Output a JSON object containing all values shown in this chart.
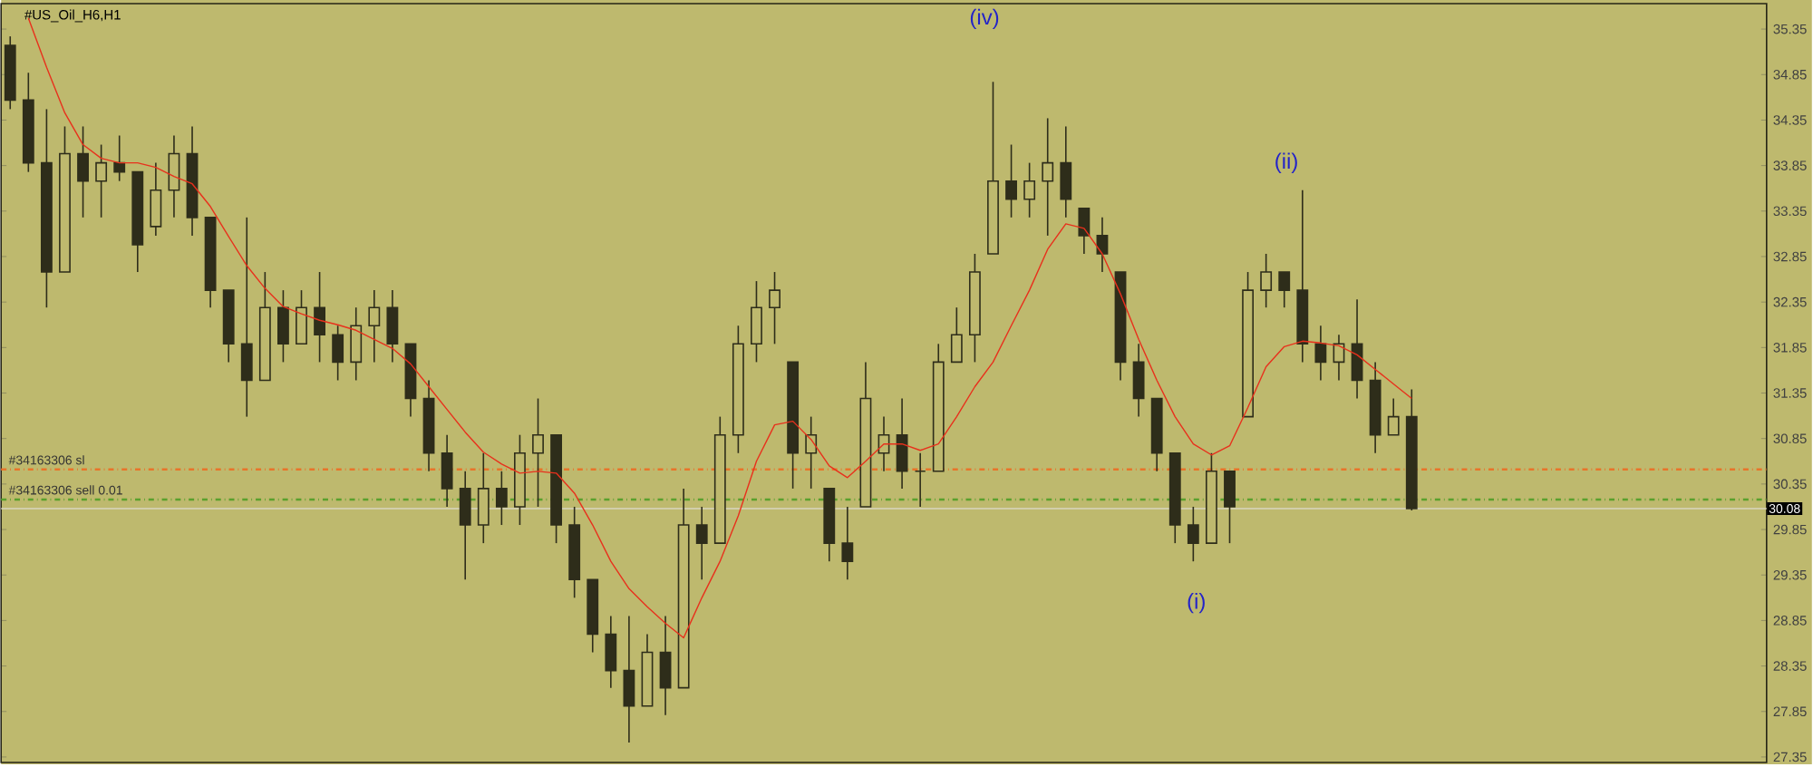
{
  "chart_data": {
    "type": "candlestick",
    "title": "#US_Oil_H6,H1",
    "categories": [
      null,
      null,
      null,
      null,
      null,
      null,
      null,
      null,
      null,
      null,
      null,
      null,
      null,
      null,
      null,
      null,
      null,
      null,
      null,
      null,
      null,
      null,
      null,
      null,
      null,
      null,
      null,
      null,
      null,
      null,
      null,
      null,
      null,
      null,
      null,
      null,
      null,
      null,
      null,
      null,
      null,
      null,
      null,
      null,
      null,
      null,
      null,
      null,
      null,
      null,
      null,
      null,
      null,
      null,
      null,
      null,
      null,
      null,
      null,
      null,
      null,
      null,
      null,
      null,
      null,
      null,
      null,
      null,
      null,
      null,
      null,
      null,
      null,
      null,
      null,
      null,
      null,
      null,
      null,
      null,
      null,
      null,
      null,
      null,
      null,
      null,
      null,
      null,
      null,
      null,
      null,
      null,
      null,
      null,
      null,
      null,
      null
    ],
    "ylim": [
      27.29,
      35.63
    ],
    "yticks": [
      27.35,
      27.85,
      28.35,
      28.85,
      29.35,
      29.85,
      30.35,
      30.85,
      31.35,
      31.85,
      32.35,
      32.85,
      33.35,
      33.85,
      34.35,
      34.85,
      35.35
    ],
    "tick_labels": "y",
    "series": [
      {
        "type": "candlestick",
        "color": "#2e2d1a",
        "ohlc": [
          [
            35.17,
            35.27,
            34.47,
            34.57
          ],
          [
            34.57,
            34.87,
            33.78,
            33.88
          ],
          [
            33.88,
            34.47,
            32.29,
            32.68
          ],
          [
            32.68,
            34.28,
            32.68,
            33.98
          ],
          [
            33.98,
            34.28,
            33.28,
            33.68
          ],
          [
            33.68,
            34.08,
            33.28,
            33.88
          ],
          [
            33.88,
            34.18,
            33.68,
            33.78
          ],
          [
            33.78,
            33.78,
            32.68,
            32.98
          ],
          [
            33.18,
            33.88,
            33.08,
            33.58
          ],
          [
            33.58,
            34.18,
            33.28,
            33.98
          ],
          [
            33.98,
            34.28,
            33.08,
            33.28
          ],
          [
            33.28,
            33.28,
            32.29,
            32.48
          ],
          [
            32.48,
            32.48,
            31.69,
            31.89
          ],
          [
            31.89,
            33.28,
            31.09,
            31.49
          ],
          [
            31.49,
            32.68,
            31.49,
            32.29
          ],
          [
            32.29,
            32.48,
            31.69,
            31.89
          ],
          [
            31.89,
            32.48,
            31.89,
            32.29
          ],
          [
            32.29,
            32.68,
            31.69,
            31.99
          ],
          [
            31.99,
            32.09,
            31.49,
            31.69
          ],
          [
            31.69,
            32.29,
            31.49,
            32.09
          ],
          [
            32.09,
            32.48,
            31.69,
            32.29
          ],
          [
            32.29,
            32.48,
            31.69,
            31.89
          ],
          [
            31.89,
            31.89,
            31.09,
            31.29
          ],
          [
            31.29,
            31.49,
            30.49,
            30.69
          ],
          [
            30.69,
            30.89,
            30.1,
            30.3
          ],
          [
            30.3,
            30.49,
            29.3,
            29.9
          ],
          [
            29.9,
            30.69,
            29.7,
            30.3
          ],
          [
            30.3,
            30.49,
            29.9,
            30.1
          ],
          [
            30.1,
            30.89,
            29.9,
            30.69
          ],
          [
            30.69,
            31.29,
            30.1,
            30.89
          ],
          [
            30.89,
            30.89,
            29.7,
            29.9
          ],
          [
            29.9,
            30.1,
            29.1,
            29.3
          ],
          [
            29.3,
            29.3,
            28.5,
            28.7
          ],
          [
            28.7,
            28.9,
            28.11,
            28.3
          ],
          [
            28.3,
            28.9,
            27.51,
            27.91
          ],
          [
            27.91,
            28.7,
            27.91,
            28.5
          ],
          [
            28.5,
            28.9,
            27.81,
            28.11
          ],
          [
            28.11,
            30.3,
            28.11,
            29.9
          ],
          [
            29.9,
            30.1,
            29.3,
            29.7
          ],
          [
            29.7,
            31.09,
            29.7,
            30.89
          ],
          [
            30.89,
            32.09,
            30.69,
            31.89
          ],
          [
            31.89,
            32.58,
            31.69,
            32.29
          ],
          [
            32.29,
            32.68,
            31.89,
            32.48
          ],
          [
            31.69,
            31.69,
            30.3,
            30.69
          ],
          [
            30.69,
            31.09,
            30.3,
            30.89
          ],
          [
            30.3,
            30.3,
            29.5,
            29.7
          ],
          [
            29.7,
            30.1,
            29.3,
            29.5
          ],
          [
            30.1,
            31.69,
            30.1,
            31.29
          ],
          [
            30.69,
            31.09,
            30.49,
            30.89
          ],
          [
            30.89,
            31.29,
            30.3,
            30.49
          ],
          [
            30.49,
            30.69,
            30.1,
            30.49
          ],
          [
            30.49,
            31.89,
            30.49,
            31.69
          ],
          [
            31.69,
            32.29,
            31.69,
            31.99
          ],
          [
            31.99,
            32.88,
            31.69,
            32.68
          ],
          [
            32.88,
            34.77,
            32.88,
            33.68
          ],
          [
            33.68,
            34.08,
            33.28,
            33.48
          ],
          [
            33.48,
            33.88,
            33.28,
            33.68
          ],
          [
            33.68,
            34.37,
            33.08,
            33.88
          ],
          [
            33.88,
            34.28,
            33.28,
            33.48
          ],
          [
            33.38,
            33.38,
            32.88,
            33.08
          ],
          [
            33.08,
            33.28,
            32.68,
            32.88
          ],
          [
            32.68,
            32.68,
            31.49,
            31.69
          ],
          [
            31.69,
            31.89,
            31.09,
            31.29
          ],
          [
            31.29,
            31.29,
            30.49,
            30.69
          ],
          [
            30.69,
            30.69,
            29.7,
            29.9
          ],
          [
            29.9,
            30.1,
            29.5,
            29.7
          ],
          [
            29.7,
            30.69,
            29.7,
            30.49
          ],
          [
            30.49,
            30.49,
            29.7,
            30.1
          ],
          [
            31.09,
            32.68,
            31.09,
            32.48
          ],
          [
            32.48,
            32.88,
            32.29,
            32.68
          ],
          [
            32.68,
            32.68,
            32.29,
            32.48
          ],
          [
            32.48,
            33.58,
            31.69,
            31.89
          ],
          [
            31.89,
            32.09,
            31.49,
            31.69
          ],
          [
            31.69,
            31.99,
            31.49,
            31.89
          ],
          [
            31.89,
            32.38,
            31.29,
            31.49
          ],
          [
            31.49,
            31.69,
            30.69,
            30.89
          ],
          [
            30.89,
            31.29,
            30.89,
            31.09
          ],
          [
            31.09,
            31.39,
            30.06,
            30.08
          ],
          null,
          null,
          null,
          null,
          null,
          null,
          null,
          null,
          null,
          null,
          null,
          null,
          null,
          null,
          null,
          null,
          null,
          null,
          null
        ]
      },
      {
        "type": "line",
        "color": "#e8301c",
        "values": [
          null,
          35.47,
          34.93,
          34.43,
          34.08,
          33.93,
          33.88,
          33.88,
          33.83,
          33.73,
          33.65,
          33.4,
          33.07,
          32.75,
          32.5,
          32.3,
          32.22,
          32.15,
          32.1,
          32.04,
          31.94,
          31.84,
          31.67,
          31.42,
          31.17,
          30.92,
          30.7,
          30.57,
          30.47,
          30.49,
          30.47,
          30.25,
          29.9,
          29.5,
          29.2,
          29.0,
          28.82,
          28.66,
          29.1,
          29.5,
          30.0,
          30.6,
          31.0,
          31.04,
          30.84,
          30.55,
          30.42,
          30.6,
          30.79,
          30.79,
          30.72,
          30.79,
          31.09,
          31.42,
          31.69,
          32.09,
          32.48,
          32.93,
          33.21,
          33.16,
          32.88,
          32.44,
          31.94,
          31.49,
          31.09,
          30.79,
          30.67,
          30.77,
          31.19,
          31.64,
          31.86,
          31.92,
          31.9,
          31.87,
          31.77,
          31.61,
          31.45,
          31.29,
          null,
          null,
          null,
          null,
          null,
          null,
          null,
          null,
          null,
          null,
          null,
          null,
          null,
          null,
          null,
          null,
          null,
          null,
          null
        ]
      }
    ],
    "ref_lines": [
      {
        "axis": "y",
        "value": 30.51,
        "label": "#34163306 sl",
        "color": "#e8742a",
        "line_style": "dashed"
      },
      {
        "axis": "y",
        "value": 30.18,
        "label": "#34163306 sell 0.01",
        "color": "#5aa02c",
        "line_style": "dashed"
      },
      {
        "axis": "y",
        "value": 30.08,
        "label": "30.08",
        "color": "#d8d6c0",
        "line_style": "solid"
      }
    ],
    "annotations": [
      "(i)",
      "(ii)",
      "(iv)"
    ]
  }
}
